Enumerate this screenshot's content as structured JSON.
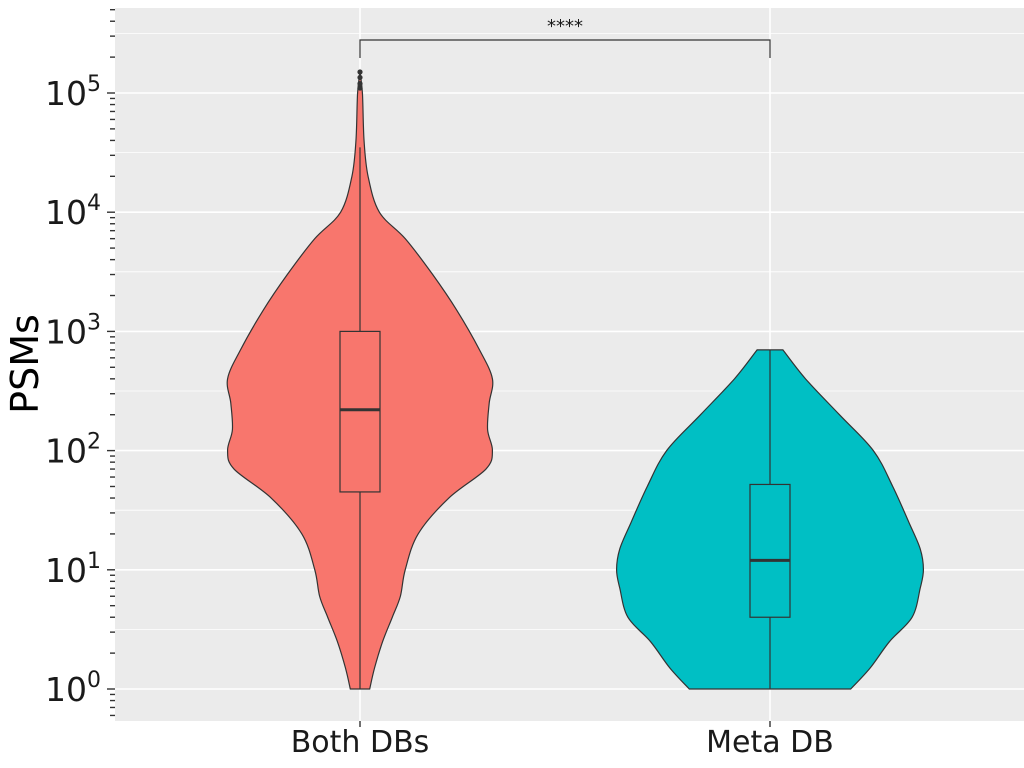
{
  "chart_data": {
    "type": "violin",
    "title": "",
    "xlabel": "",
    "ylabel": "PSMs",
    "y_scale": "log10",
    "ylim": [
      0.55,
      500000
    ],
    "grid": true,
    "legend": "none",
    "y_ticks": [
      {
        "value": 1,
        "base": "10",
        "exp": "0"
      },
      {
        "value": 10,
        "base": "10",
        "exp": "1"
      },
      {
        "value": 100,
        "base": "10",
        "exp": "2"
      },
      {
        "value": 1000,
        "base": "10",
        "exp": "3"
      },
      {
        "value": 10000,
        "base": "10",
        "exp": "4"
      },
      {
        "value": 100000,
        "base": "10",
        "exp": "5"
      }
    ],
    "categories": [
      "Both DBs",
      "Meta DB"
    ],
    "series": [
      {
        "category": "Both DBs",
        "color": "#F8766D",
        "min": 1,
        "q1": 45,
        "median": 220,
        "q3": 1000,
        "max": 35000,
        "outliers": [
          110000,
          120000,
          135000,
          150000
        ],
        "density": [
          [
            1,
            0.06
          ],
          [
            1.5,
            0.09
          ],
          [
            2.5,
            0.14
          ],
          [
            4,
            0.2
          ],
          [
            6,
            0.25
          ],
          [
            10,
            0.28
          ],
          [
            20,
            0.36
          ],
          [
            40,
            0.55
          ],
          [
            70,
            0.78
          ],
          [
            100,
            0.82
          ],
          [
            150,
            0.79
          ],
          [
            250,
            0.8
          ],
          [
            400,
            0.82
          ],
          [
            700,
            0.74
          ],
          [
            1500,
            0.6
          ],
          [
            3000,
            0.45
          ],
          [
            6000,
            0.28
          ],
          [
            10000,
            0.12
          ],
          [
            20000,
            0.05
          ],
          [
            40000,
            0.025
          ],
          [
            100000,
            0.015
          ],
          [
            150000,
            0.0
          ]
        ]
      },
      {
        "category": "Meta DB",
        "color": "#00BFC4",
        "min": 1,
        "q1": 4,
        "median": 12,
        "q3": 52,
        "max": 700,
        "outliers": [],
        "density": [
          [
            1,
            0.5
          ],
          [
            1.5,
            0.62
          ],
          [
            2.5,
            0.74
          ],
          [
            4,
            0.88
          ],
          [
            7,
            0.93
          ],
          [
            10,
            0.95
          ],
          [
            15,
            0.93
          ],
          [
            25,
            0.86
          ],
          [
            50,
            0.76
          ],
          [
            100,
            0.64
          ],
          [
            200,
            0.43
          ],
          [
            400,
            0.22
          ],
          [
            700,
            0.08
          ]
        ]
      }
    ],
    "annotations": [
      {
        "text": "****",
        "between": [
          "Both DBs",
          "Meta DB"
        ]
      }
    ]
  }
}
